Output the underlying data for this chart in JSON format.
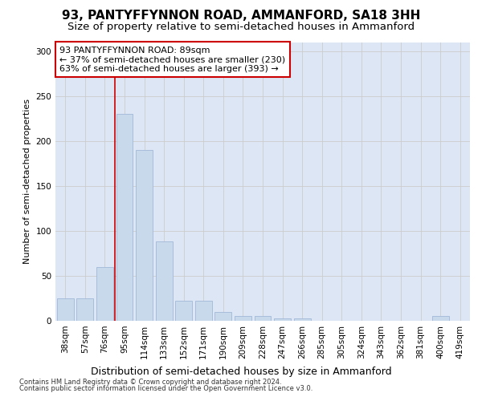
{
  "title": "93, PANTYFFYNNON ROAD, AMMANFORD, SA18 3HH",
  "subtitle": "Size of property relative to semi-detached houses in Ammanford",
  "xlabel_bottom": "Distribution of semi-detached houses by size in Ammanford",
  "ylabel": "Number of semi-detached properties",
  "footnote1": "Contains HM Land Registry data © Crown copyright and database right 2024.",
  "footnote2": "Contains public sector information licensed under the Open Government Licence v3.0.",
  "annotation_line1": "93 PANTYFFYNNON ROAD: 89sqm",
  "annotation_line2": "← 37% of semi-detached houses are smaller (230)",
  "annotation_line3": "63% of semi-detached houses are larger (393) →",
  "bar_categories": [
    "38sqm",
    "57sqm",
    "76sqm",
    "95sqm",
    "114sqm",
    "133sqm",
    "152sqm",
    "171sqm",
    "190sqm",
    "209sqm",
    "228sqm",
    "247sqm",
    "266sqm",
    "285sqm",
    "305sqm",
    "324sqm",
    "343sqm",
    "362sqm",
    "381sqm",
    "400sqm",
    "419sqm"
  ],
  "bar_values": [
    25,
    25,
    60,
    230,
    190,
    88,
    22,
    22,
    10,
    5,
    5,
    3,
    3,
    0,
    0,
    0,
    0,
    0,
    0,
    5,
    0
  ],
  "bar_color": "#c9d9ec",
  "bar_edge_color": "#a0b8d8",
  "vline_color": "#cc0000",
  "vline_x": 2.5,
  "ylim": [
    0,
    310
  ],
  "yticks": [
    0,
    50,
    100,
    150,
    200,
    250,
    300
  ],
  "grid_color": "#cccccc",
  "bg_color": "#dce6f5",
  "annotation_box_color": "#ffffff",
  "annotation_box_edge": "#cc0000",
  "title_fontsize": 11,
  "subtitle_fontsize": 9.5,
  "ylabel_fontsize": 8,
  "tick_fontsize": 7.5,
  "annotation_fontsize": 8,
  "xlabel_fontsize": 9,
  "footnote_fontsize": 6
}
